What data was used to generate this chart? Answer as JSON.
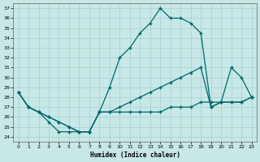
{
  "xlabel": "Humidex (Indice chaleur)",
  "bg_color": "#c8e8e8",
  "grid_color": "#a8cece",
  "line_color": "#006868",
  "xlim": [
    -0.5,
    23.5
  ],
  "ylim": [
    23.5,
    37.5
  ],
  "xticks": [
    0,
    1,
    2,
    3,
    4,
    5,
    6,
    7,
    8,
    9,
    10,
    11,
    12,
    13,
    14,
    15,
    16,
    17,
    18,
    19,
    20,
    21,
    22,
    23
  ],
  "yticks": [
    24,
    25,
    26,
    27,
    28,
    29,
    30,
    31,
    32,
    33,
    34,
    35,
    36,
    37
  ],
  "curves": [
    {
      "x": [
        0,
        1,
        2,
        3,
        4,
        5,
        6,
        7,
        8,
        9,
        10,
        11,
        12,
        13,
        14,
        15,
        16,
        17,
        18,
        19,
        20,
        21,
        22,
        23
      ],
      "y": [
        28.5,
        27.0,
        26.5,
        26.0,
        25.5,
        25.0,
        24.5,
        24.5,
        26.5,
        29.0,
        32.0,
        33.0,
        34.5,
        35.5,
        37.0,
        36.0,
        36.0,
        35.5,
        34.5,
        27.0,
        27.5,
        31.0,
        30.0,
        28.0
      ]
    },
    {
      "x": [
        0,
        1,
        2,
        3,
        4,
        5,
        6,
        7,
        8,
        9,
        10,
        11,
        12,
        13,
        14,
        15,
        16,
        17,
        18,
        19,
        20,
        21,
        22,
        23
      ],
      "y": [
        28.5,
        27.0,
        26.5,
        26.0,
        25.5,
        25.0,
        24.5,
        24.5,
        26.5,
        26.5,
        27.0,
        27.5,
        28.0,
        28.5,
        29.0,
        29.5,
        30.0,
        30.5,
        31.0,
        27.0,
        27.5,
        27.5,
        27.5,
        28.0
      ]
    },
    {
      "x": [
        0,
        1,
        2,
        3,
        4,
        5,
        6,
        7,
        8,
        9,
        10,
        11,
        12,
        13,
        14,
        15,
        16,
        17,
        18,
        19,
        20,
        21,
        22,
        23
      ],
      "y": [
        28.5,
        27.0,
        26.5,
        25.5,
        24.5,
        24.5,
        24.5,
        24.5,
        26.5,
        26.5,
        26.5,
        26.5,
        26.5,
        26.5,
        26.5,
        27.0,
        27.0,
        27.0,
        27.5,
        27.5,
        27.5,
        27.5,
        27.5,
        28.0
      ]
    }
  ]
}
